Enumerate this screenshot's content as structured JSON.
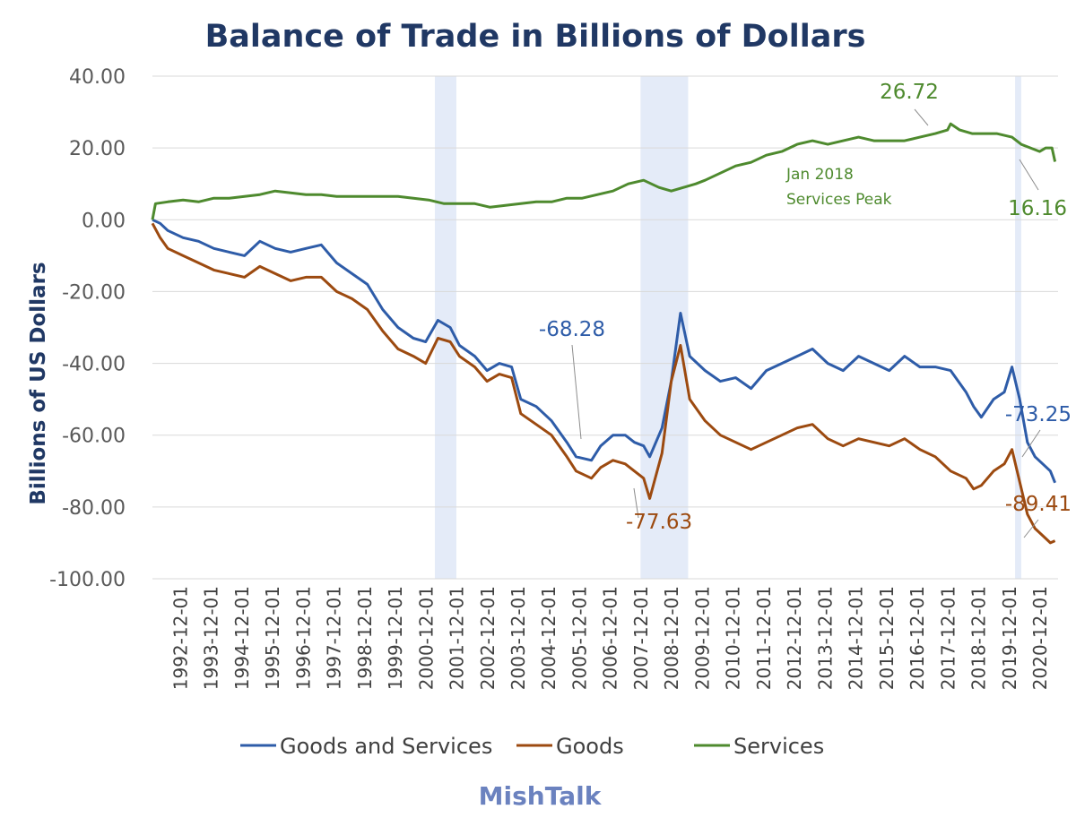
{
  "chart_data": {
    "type": "line",
    "title": "Balance of Trade in Billions of Dollars",
    "ylabel": "Billions of US Dollars",
    "xlabel": "",
    "ylim": [
      -100,
      40
    ],
    "y_ticks": [
      "40.00",
      "20.00",
      "0.00",
      "-20.00",
      "-40.00",
      "-60.00",
      "-80.00",
      "-100.00"
    ],
    "x_range": [
      1992.0,
      2021.5
    ],
    "x_ticks": [
      "1992-12-01",
      "1993-12-01",
      "1994-12-01",
      "1995-12-01",
      "1996-12-01",
      "1997-12-01",
      "1998-12-01",
      "1999-12-01",
      "2000-12-01",
      "2001-12-01",
      "2002-12-01",
      "2003-12-01",
      "2004-12-01",
      "2005-12-01",
      "2006-12-01",
      "2007-12-01",
      "2008-12-01",
      "2009-12-01",
      "2010-12-01",
      "2011-12-01",
      "2012-12-01",
      "2013-12-01",
      "2014-12-01",
      "2015-12-01",
      "2016-12-01",
      "2017-12-01",
      "2018-12-01",
      "2019-12-01",
      "2020-12-01"
    ],
    "grid": "horizontal",
    "legend_position": "bottom",
    "recessions": [
      [
        2001.2,
        2001.9
      ],
      [
        2007.9,
        2009.45
      ],
      [
        2020.1,
        2020.3
      ]
    ],
    "series": [
      {
        "name": "Goods and Services",
        "color": "#2e5ca8",
        "x": [
          1992.0,
          1992.25,
          1992.5,
          1993.0,
          1993.5,
          1994.0,
          1994.5,
          1995.0,
          1995.5,
          1996.0,
          1996.5,
          1997.0,
          1997.5,
          1998.0,
          1998.5,
          1999.0,
          1999.5,
          2000.0,
          2000.5,
          2000.9,
          2001.3,
          2001.7,
          2002.0,
          2002.5,
          2002.9,
          2003.3,
          2003.7,
          2004.0,
          2004.5,
          2005.0,
          2005.5,
          2005.8,
          2006.3,
          2006.6,
          2007.0,
          2007.4,
          2007.7,
          2008.0,
          2008.2,
          2008.6,
          2008.9,
          2009.2,
          2009.5,
          2010.0,
          2010.5,
          2011.0,
          2011.5,
          2012.0,
          2012.5,
          2013.0,
          2013.5,
          2014.0,
          2014.5,
          2015.0,
          2015.5,
          2016.0,
          2016.5,
          2017.0,
          2017.5,
          2018.0,
          2018.5,
          2018.75,
          2019.0,
          2019.4,
          2019.75,
          2020.0,
          2020.25,
          2020.5,
          2020.75,
          2021.0,
          2021.25,
          2021.4
        ],
        "y": [
          0,
          -1,
          -3,
          -5,
          -6,
          -8,
          -9,
          -10,
          -6,
          -8,
          -9,
          -8,
          -7,
          -12,
          -15,
          -18,
          -25,
          -30,
          -33,
          -34,
          -28,
          -30,
          -35,
          -38,
          -42,
          -40,
          -41,
          -50,
          -52,
          -56,
          -62,
          -66,
          -67,
          -63,
          -60,
          -60,
          -62,
          -63,
          -66,
          -58,
          -45,
          -26,
          -38,
          -42,
          -45,
          -44,
          -47,
          -42,
          -40,
          -38,
          -36,
          -40,
          -42,
          -38,
          -40,
          -42,
          -38,
          -41,
          -41,
          -42,
          -48,
          -52,
          -55,
          -50,
          -48,
          -41,
          -50,
          -62,
          -66,
          -68,
          -70,
          -73.25
        ]
      },
      {
        "name": "Goods",
        "color": "#9c4a10",
        "x": [
          1992.0,
          1992.25,
          1992.5,
          1993.0,
          1993.5,
          1994.0,
          1994.5,
          1995.0,
          1995.5,
          1996.0,
          1996.5,
          1997.0,
          1997.5,
          1998.0,
          1998.5,
          1999.0,
          1999.5,
          2000.0,
          2000.5,
          2000.9,
          2001.3,
          2001.7,
          2002.0,
          2002.5,
          2002.9,
          2003.3,
          2003.7,
          2004.0,
          2004.5,
          2005.0,
          2005.5,
          2005.8,
          2006.3,
          2006.6,
          2007.0,
          2007.4,
          2007.7,
          2008.0,
          2008.2,
          2008.6,
          2008.9,
          2009.2,
          2009.5,
          2010.0,
          2010.5,
          2011.0,
          2011.5,
          2012.0,
          2012.5,
          2013.0,
          2013.5,
          2014.0,
          2014.5,
          2015.0,
          2015.5,
          2016.0,
          2016.5,
          2017.0,
          2017.5,
          2018.0,
          2018.5,
          2018.75,
          2019.0,
          2019.4,
          2019.75,
          2020.0,
          2020.25,
          2020.5,
          2020.75,
          2021.0,
          2021.25,
          2021.4
        ],
        "y": [
          -1,
          -5,
          -8,
          -10,
          -12,
          -14,
          -15,
          -16,
          -13,
          -15,
          -17,
          -16,
          -16,
          -20,
          -22,
          -25,
          -31,
          -36,
          -38,
          -40,
          -33,
          -34,
          -38,
          -41,
          -45,
          -43,
          -44,
          -54,
          -57,
          -60,
          -66,
          -70,
          -72,
          -69,
          -67,
          -68,
          -70,
          -72,
          -77.63,
          -65,
          -45,
          -35,
          -50,
          -56,
          -60,
          -62,
          -64,
          -62,
          -60,
          -58,
          -57,
          -61,
          -63,
          -61,
          -62,
          -63,
          -61,
          -64,
          -66,
          -70,
          -72,
          -75,
          -74,
          -70,
          -68,
          -64,
          -73,
          -82,
          -86,
          -88,
          -90,
          -89.41
        ]
      },
      {
        "name": "Services",
        "color": "#4e8a2e",
        "x": [
          1992.0,
          1992.1,
          1992.5,
          1993.0,
          1993.5,
          1994.0,
          1994.5,
          1995.0,
          1995.5,
          1996.0,
          1996.5,
          1997.0,
          1997.5,
          1998.0,
          1998.5,
          1999.0,
          1999.5,
          2000.0,
          2000.5,
          2001.0,
          2001.5,
          2002.0,
          2002.5,
          2003.0,
          2003.5,
          2004.0,
          2004.5,
          2005.0,
          2005.5,
          2006.0,
          2006.5,
          2007.0,
          2007.5,
          2008.0,
          2008.5,
          2008.9,
          2009.3,
          2009.7,
          2010.0,
          2010.5,
          2011.0,
          2011.5,
          2012.0,
          2012.5,
          2013.0,
          2013.5,
          2014.0,
          2014.5,
          2015.0,
          2015.5,
          2016.0,
          2016.5,
          2017.0,
          2017.5,
          2017.9,
          2018.0,
          2018.3,
          2018.7,
          2019.0,
          2019.5,
          2020.0,
          2020.3,
          2020.6,
          2020.9,
          2021.1,
          2021.3,
          2021.4
        ],
        "y": [
          0,
          4.5,
          5,
          5.5,
          5,
          6,
          6,
          6.5,
          7,
          8,
          7.5,
          7,
          7,
          6.5,
          6.5,
          6.5,
          6.5,
          6.5,
          6,
          5.5,
          4.5,
          4.5,
          4.5,
          3.5,
          4,
          4.5,
          5,
          5,
          6,
          6,
          7,
          8,
          10,
          11,
          9,
          8,
          9,
          10,
          11,
          13,
          15,
          16,
          18,
          19,
          21,
          22,
          21,
          22,
          23,
          22,
          22,
          22,
          23,
          24,
          25,
          26.72,
          25,
          24,
          24,
          24,
          23,
          21,
          20,
          19,
          20,
          20,
          16.16
        ]
      }
    ],
    "annotations": [
      {
        "text": "26.72",
        "series": "Services"
      },
      {
        "text": "16.16",
        "series": "Services"
      },
      {
        "text": "Jan 2018",
        "series": "Services"
      },
      {
        "text": "Services Peak",
        "series": "Services"
      },
      {
        "text": "-68.28",
        "series": "Goods and Services"
      },
      {
        "text": "-77.63",
        "series": "Goods"
      },
      {
        "text": "-73.25",
        "series": "Goods and Services"
      },
      {
        "text": "-89.41",
        "series": "Goods"
      }
    ]
  },
  "watermark": "MishTalk"
}
